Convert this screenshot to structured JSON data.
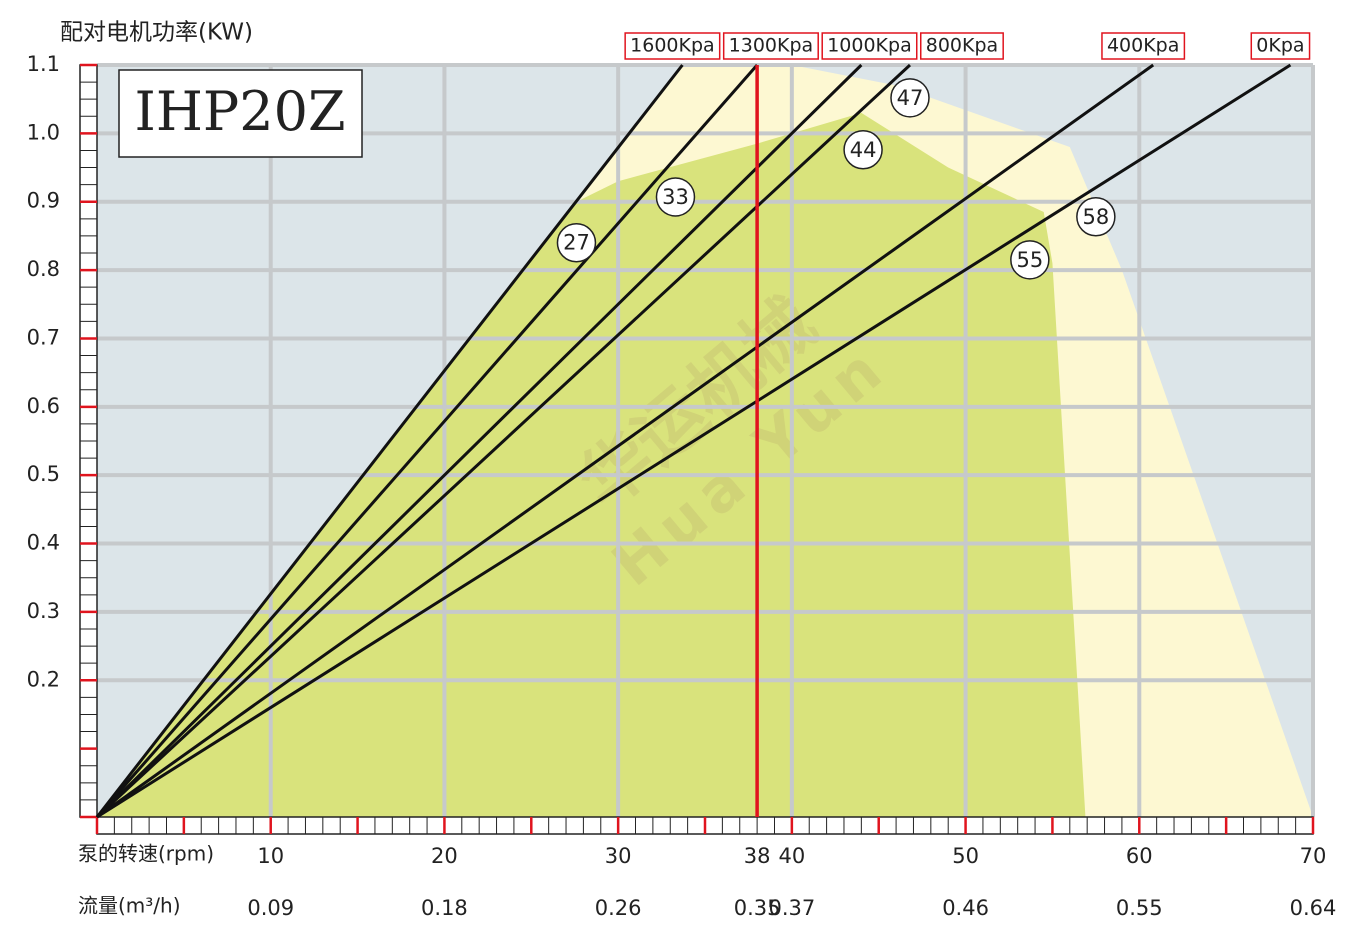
{
  "chart_data": {
    "type": "line",
    "title": "IHP20Z",
    "y_label": "配对电机功率(KW)",
    "x_label": "泵的转速(rpm)",
    "x2_label": "流量(m³/h)",
    "xlim": [
      0,
      70
    ],
    "ylim": [
      0,
      1.1
    ],
    "xticks": [
      10,
      20,
      30,
      38,
      40,
      50,
      60,
      70
    ],
    "x2ticks": [
      0.09,
      0.18,
      0.26,
      0.35,
      0.37,
      0.46,
      0.55,
      0.64
    ],
    "yticks": [
      0.2,
      {
        "value": 0.3,
        "label": "0.3"
      },
      0.4,
      0.5,
      0.6,
      0.7,
      0.8,
      0.9,
      {
        "value": 1.0,
        "label": "1.0"
      },
      1.1
    ],
    "grid": true,
    "background": "#dce5e9",
    "highlight_x": 38,
    "highlight_color": "#e0141e",
    "regions": [
      {
        "color": "#fdf8d2",
        "x": [
          0,
          27.6,
          33.7,
          40,
          46,
          56,
          59,
          70
        ],
        "y": [
          0,
          0.9,
          1.1,
          1.1,
          1.07,
          0.98,
          0.8,
          0
        ]
      },
      {
        "color": "#d9e37c",
        "x": [
          0,
          27.6,
          30,
          38,
          44,
          49,
          54.5,
          55,
          56.9
        ],
        "y": [
          0,
          0.9,
          0.93,
          0.985,
          1.03,
          0.95,
          0.885,
          0.81,
          0
        ]
      }
    ],
    "series": [
      {
        "name": "1600Kpa",
        "color": "#111111",
        "x": [
          0,
          33.7
        ],
        "values": [
          0,
          1.1
        ]
      },
      {
        "name": "1300Kpa",
        "color": "#111111",
        "x": [
          0,
          38
        ],
        "values": [
          0,
          1.1
        ]
      },
      {
        "name": "1000Kpa",
        "color": "#111111",
        "x": [
          0,
          44
        ],
        "values": [
          0,
          1.1
        ]
      },
      {
        "name": "800Kpa",
        "color": "#111111",
        "x": [
          0,
          46.8
        ],
        "values": [
          0,
          1.1
        ]
      },
      {
        "name": "400Kpa",
        "color": "#111111",
        "x": [
          0,
          60.8
        ],
        "values": [
          0,
          1.1
        ]
      },
      {
        "name": "0Kpa",
        "color": "#111111",
        "x": [
          0,
          68.7
        ],
        "values": [
          0,
          1.1
        ]
      }
    ],
    "annotations": [
      {
        "text": "27",
        "x": 27.6,
        "y": 0.84
      },
      {
        "text": "33",
        "x": 33.3,
        "y": 0.907
      },
      {
        "text": "47",
        "x": 46.8,
        "y": 1.052
      },
      {
        "text": "44",
        "x": 44.1,
        "y": 0.976
      },
      {
        "text": "58",
        "x": 57.5,
        "y": 0.878
      },
      {
        "text": "55",
        "x": 53.7,
        "y": 0.815
      }
    ],
    "watermark": [
      "华运机械",
      "Hua Yun"
    ]
  }
}
